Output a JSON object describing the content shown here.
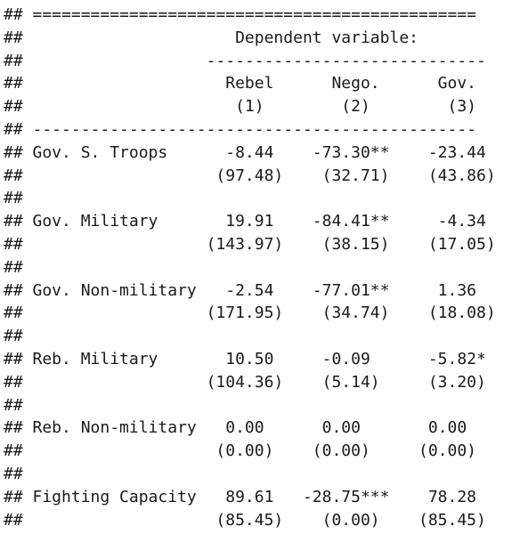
{
  "console": {
    "lines": [
      "## ==============================================",
      "##                      Dependent variable:",
      "##                   -----------------------------",
      "##                     Rebel      Nego.      Gov.",
      "##                      (1)        (2)        (3)",
      "## ----------------------------------------------",
      "## Gov. S. Troops      -8.44    -73.30**    -23.44",
      "##                    (97.48)    (32.71)    (43.86)",
      "##",
      "## Gov. Military       19.91    -84.41**     -4.34",
      "##                   (143.97)    (38.15)    (17.05)",
      "##",
      "## Gov. Non-military   -2.54    -77.01**     1.36",
      "##                   (171.95)    (34.74)    (18.08)",
      "##",
      "## Reb. Military       10.50     -0.09      -5.82*",
      "##                   (104.36)    (5.14)     (3.20)",
      "##",
      "## Reb. Non-military   0.00      0.00       0.00",
      "##                    (0.00)    (0.00)     (0.00)",
      "##",
      "## Fighting Capacity   89.61   -28.75***    78.28",
      "##                    (85.45)    (0.00)    (85.45)"
    ]
  }
}
